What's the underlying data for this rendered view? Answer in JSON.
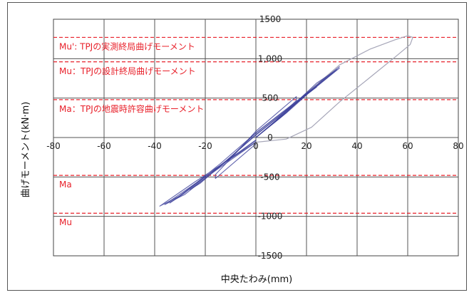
{
  "chart_data": {
    "type": "line",
    "xlabel": "中央たわみ(mm)",
    "ylabel": "曲げモーメント(kN·m)",
    "xlim": [
      -80,
      80
    ],
    "ylim": [
      -1500,
      1500
    ],
    "x_ticks": [
      "-80",
      "-60",
      "-40",
      "-20",
      "0",
      "20",
      "40",
      "60",
      "80"
    ],
    "y_ticks": [
      "1500",
      "1,000",
      "500",
      "0",
      "-500",
      "-1000",
      "-1500"
    ],
    "grid": true,
    "reference_lines": [
      {
        "label": "Mu': TPJの実測終局曲げモーメント",
        "y": 1270
      },
      {
        "label": "Mu：TPJの設計終局曲げモーメント",
        "y": 960
      },
      {
        "label": "Ma：TPJの地震時許容曲げモーメント",
        "y": 480
      },
      {
        "label": "Ma",
        "y": -480
      },
      {
        "label": "Mu",
        "y": -960
      }
    ],
    "series": [
      {
        "role": "final-cycle",
        "color": "#a6a6b8",
        "x": [
          0,
          10,
          20,
          33,
          45,
          55,
          60,
          62,
          61,
          55,
          45,
          33,
          22,
          12,
          0
        ],
        "y": [
          0,
          260,
          560,
          920,
          1120,
          1240,
          1290,
          1270,
          1180,
          1020,
          760,
          450,
          130,
          -20,
          -60
        ]
      },
      {
        "role": "hysteresis-cycles",
        "color": "#3b3f9a",
        "cycles": [
          {
            "x": [
              0,
              8,
              16,
              16,
              8,
              0,
              -8,
              -16,
              -16,
              -8,
              0
            ],
            "y": [
              0,
              220,
              470,
              520,
              300,
              80,
              -200,
              -470,
              -520,
              -300,
              -80
            ]
          },
          {
            "x": [
              0,
              10,
              20,
              24,
              14,
              0,
              -10,
              -22,
              -26,
              -16,
              0
            ],
            "y": [
              0,
              260,
              560,
              640,
              400,
              60,
              -250,
              -580,
              -660,
              -420,
              -60
            ]
          },
          {
            "x": [
              0,
              12,
              26,
              33,
              20,
              0,
              -14,
              -30,
              -38,
              -24,
              0
            ],
            "y": [
              0,
              320,
              720,
              900,
              560,
              60,
              -330,
              -740,
              -870,
              -560,
              -60
            ]
          },
          {
            "x": [
              0,
              12,
              26,
              33,
              20,
              0,
              -12,
              -28,
              -36,
              -22,
              0
            ],
            "y": [
              0,
              310,
              710,
              880,
              540,
              40,
              -310,
              -720,
              -850,
              -540,
              -40
            ]
          },
          {
            "x": [
              0,
              11,
              24,
              32,
              19,
              0,
              -12,
              -28,
              -34,
              -21,
              0
            ],
            "y": [
              0,
              300,
              690,
              860,
              520,
              30,
              -300,
              -700,
              -830,
              -520,
              -30
            ]
          }
        ]
      }
    ]
  }
}
